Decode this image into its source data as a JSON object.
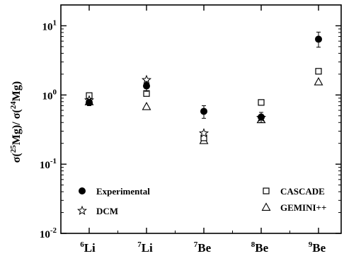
{
  "chart_data": {
    "type": "scatter",
    "title": "",
    "xlabel": "",
    "ylabel": {
      "parts": [
        "σ(",
        "25",
        "Mg)/ σ(",
        "24",
        "Mg)"
      ]
    },
    "yscale": "log",
    "ylim": [
      0.01,
      20
    ],
    "y_ticks": [
      {
        "value": 0.01,
        "base": "10",
        "exp": "-2"
      },
      {
        "value": 0.1,
        "base": "10",
        "exp": "-1"
      },
      {
        "value": 1,
        "base": "10",
        "exp": "0"
      },
      {
        "value": 10,
        "base": "10",
        "exp": "1"
      }
    ],
    "categories": [
      {
        "mass": "6",
        "element": "Li"
      },
      {
        "mass": "7",
        "element": "Li"
      },
      {
        "mass": "7",
        "element": "Be"
      },
      {
        "mass": "8",
        "element": "Be"
      },
      {
        "mass": "9",
        "element": "Be"
      }
    ],
    "series": [
      {
        "name": "Experimental",
        "marker": "filled-circle",
        "values": [
          0.78,
          1.35,
          0.58,
          0.48,
          6.4
        ],
        "err_low": [
          0.08,
          0.22,
          0.12,
          0.08,
          1.5
        ],
        "err_high": [
          0.08,
          0.22,
          0.12,
          0.08,
          1.7
        ]
      },
      {
        "name": "DCM",
        "marker": "open-star",
        "values": [
          0.84,
          1.65,
          0.28,
          0.47,
          null
        ]
      },
      {
        "name": "CASCADE",
        "marker": "open-square",
        "values": [
          0.98,
          1.05,
          0.24,
          0.78,
          2.2
        ]
      },
      {
        "name": "GEMINI++",
        "marker": "open-triangle",
        "values": [
          0.8,
          0.68,
          0.22,
          0.44,
          1.55
        ]
      }
    ],
    "legend": [
      {
        "name": "Experimental",
        "marker": "filled-circle",
        "position": "lower-left"
      },
      {
        "name": "DCM",
        "marker": "open-star",
        "position": "lower-left"
      },
      {
        "name": "CASCADE",
        "marker": "open-square",
        "position": "lower-right"
      },
      {
        "name": "GEMINI++",
        "marker": "open-triangle",
        "position": "lower-right"
      }
    ],
    "grid": false
  }
}
